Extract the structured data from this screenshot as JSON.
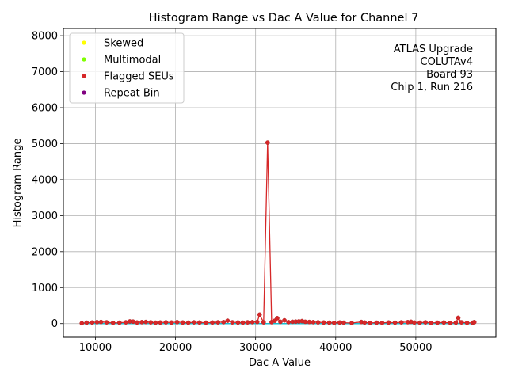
{
  "chart_data": {
    "type": "scatter",
    "title": "Histogram Range vs Dac A Value for Channel 7",
    "xlabel": "Dac A Value",
    "ylabel": "Histogram Range",
    "xlim": [
      6000,
      60000
    ],
    "ylim": [
      -380,
      8200
    ],
    "x_ticks": [
      10000,
      20000,
      30000,
      40000,
      50000
    ],
    "x_tick_labels": [
      "10000",
      "20000",
      "30000",
      "40000",
      "50000"
    ],
    "y_ticks": [
      0,
      1000,
      2000,
      3000,
      4000,
      5000,
      6000,
      7000,
      8000
    ],
    "y_tick_labels": [
      "0",
      "1000",
      "2000",
      "3000",
      "4000",
      "5000",
      "6000",
      "7000",
      "8000"
    ],
    "grid": true,
    "legend_position": "top-left",
    "annotation": [
      "ATLAS Upgrade",
      "COLUTAv4",
      "Board 93",
      "Chip 1, Run 216"
    ],
    "baseline_line": {
      "color": "#17becf",
      "x_range": [
        8200,
        57300
      ],
      "value": 0
    },
    "series": [
      {
        "name": "Skewed",
        "color": "#ffff00",
        "points": []
      },
      {
        "name": "Multimodal",
        "color": "#7fff00",
        "points": []
      },
      {
        "name": "Flagged SEUs",
        "color": "#d62728",
        "points": [
          [
            8300,
            10
          ],
          [
            8900,
            25
          ],
          [
            9600,
            30
          ],
          [
            10200,
            40
          ],
          [
            10700,
            45
          ],
          [
            11400,
            35
          ],
          [
            12200,
            20
          ],
          [
            13000,
            25
          ],
          [
            13800,
            35
          ],
          [
            14300,
            60
          ],
          [
            14700,
            55
          ],
          [
            15200,
            30
          ],
          [
            15800,
            40
          ],
          [
            16300,
            45
          ],
          [
            16900,
            35
          ],
          [
            17500,
            25
          ],
          [
            18100,
            30
          ],
          [
            18800,
            35
          ],
          [
            19500,
            30
          ],
          [
            20200,
            40
          ],
          [
            20900,
            30
          ],
          [
            21600,
            25
          ],
          [
            22300,
            35
          ],
          [
            23000,
            30
          ],
          [
            23800,
            25
          ],
          [
            24600,
            30
          ],
          [
            25300,
            35
          ],
          [
            26000,
            40
          ],
          [
            26500,
            80
          ],
          [
            27100,
            35
          ],
          [
            27800,
            30
          ],
          [
            28400,
            25
          ],
          [
            29000,
            35
          ],
          [
            29600,
            40
          ],
          [
            30200,
            45
          ],
          [
            30500,
            250
          ],
          [
            31000,
            35
          ],
          [
            31500,
            5030
          ],
          [
            32000,
            40
          ],
          [
            32400,
            80
          ],
          [
            32700,
            150
          ],
          [
            33100,
            50
          ],
          [
            33600,
            90
          ],
          [
            34100,
            40
          ],
          [
            34600,
            50
          ],
          [
            35000,
            55
          ],
          [
            35400,
            60
          ],
          [
            35800,
            70
          ],
          [
            36200,
            50
          ],
          [
            36700,
            45
          ],
          [
            37200,
            40
          ],
          [
            37800,
            35
          ],
          [
            38500,
            30
          ],
          [
            39200,
            25
          ],
          [
            39800,
            20
          ],
          [
            40500,
            30
          ],
          [
            41000,
            25
          ],
          [
            42000,
            15
          ],
          [
            43200,
            45
          ],
          [
            43600,
            30
          ],
          [
            44300,
            20
          ],
          [
            45100,
            25
          ],
          [
            45800,
            20
          ],
          [
            46600,
            30
          ],
          [
            47400,
            25
          ],
          [
            48200,
            35
          ],
          [
            49000,
            40
          ],
          [
            49400,
            50
          ],
          [
            49800,
            30
          ],
          [
            50500,
            25
          ],
          [
            51200,
            35
          ],
          [
            51900,
            20
          ],
          [
            52700,
            25
          ],
          [
            53500,
            30
          ],
          [
            54300,
            20
          ],
          [
            55000,
            25
          ],
          [
            55300,
            160
          ],
          [
            55700,
            35
          ],
          [
            56400,
            20
          ],
          [
            57100,
            25
          ],
          [
            57300,
            40
          ]
        ]
      },
      {
        "name": "Repeat Bin",
        "color": "#800080",
        "points": []
      }
    ]
  }
}
